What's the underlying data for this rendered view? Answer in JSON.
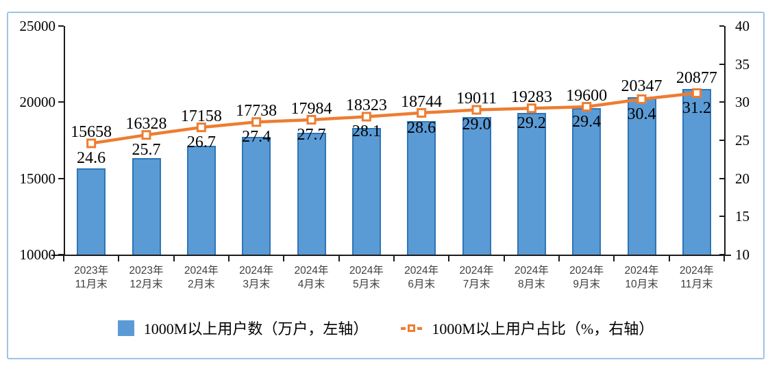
{
  "chart_data": {
    "type": "bar+line combo",
    "title": "",
    "categories": [
      "2023年\n11月末",
      "2023年\n12月末",
      "2024年\n2月末",
      "2024年\n3月末",
      "2024年\n4月末",
      "2024年\n5月末",
      "2024年\n6月末",
      "2024年\n7月末",
      "2024年\n8月末",
      "2024年\n9月末",
      "2024年\n10月末",
      "2024年\n11月末"
    ],
    "series": [
      {
        "name": "1000M以上用户数（万户，左轴）",
        "type": "bar",
        "axis": "left",
        "values": [
          15658,
          16328,
          17158,
          17738,
          17984,
          18323,
          18744,
          19011,
          19283,
          19600,
          20347,
          20877
        ]
      },
      {
        "name": "1000M以上用户占比（%，右轴）",
        "type": "line",
        "axis": "right",
        "values": [
          24.6,
          25.7,
          26.7,
          27.4,
          27.7,
          28.1,
          28.6,
          29.0,
          29.2,
          29.4,
          30.4,
          31.2
        ]
      }
    ],
    "left_axis": {
      "min": 10000,
      "max": 25000,
      "ticks": [
        10000,
        15000,
        20000,
        25000
      ]
    },
    "right_axis": {
      "min": 10,
      "max": 40,
      "ticks": [
        10,
        15,
        20,
        25,
        30,
        35,
        40
      ]
    },
    "grid": "off",
    "legend_position": "bottom",
    "colors": {
      "bar_fill": "#5B9BD5",
      "bar_border": "#2E75B6",
      "line": "#ED7D31",
      "marker_fill": "#FFFFFF",
      "panel_border": "#9DC3E6",
      "axis": "#1A1A1A",
      "xlabel": "#3F3F3F"
    }
  }
}
